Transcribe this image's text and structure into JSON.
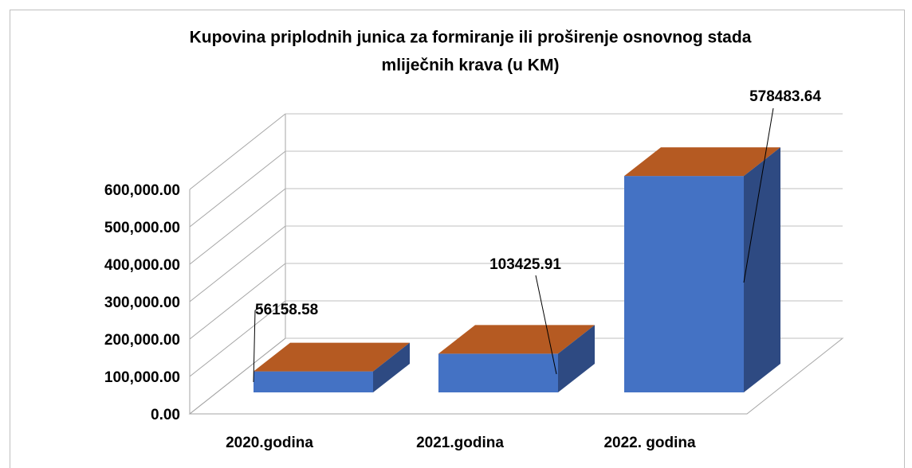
{
  "chart_data": {
    "type": "bar3d",
    "title": [
      "Kupovina priplodnih junica za formiranje ili proširenje osnovnog stada",
      "mliječnih krava (u KM)"
    ],
    "categories": [
      "2020.godina",
      "2021.godina",
      "2022. godina"
    ],
    "values": [
      56158.58,
      103425.91,
      578483.64
    ],
    "colors": {
      "front": "#4472c4",
      "top": "#b55a22",
      "side": "#2e4a82"
    },
    "ylim": [
      0,
      600000
    ],
    "yticks": [
      {
        "value": 0,
        "label": "0.00"
      },
      {
        "value": 100000,
        "label": "100,000.00"
      },
      {
        "value": 200000,
        "label": "200,000.00"
      },
      {
        "value": 300000,
        "label": "300,000.00"
      },
      {
        "value": 400000,
        "label": "400,000.00"
      },
      {
        "value": 500000,
        "label": "500,000.00"
      },
      {
        "value": 600000,
        "label": "600,000.00"
      }
    ],
    "grid": true
  }
}
